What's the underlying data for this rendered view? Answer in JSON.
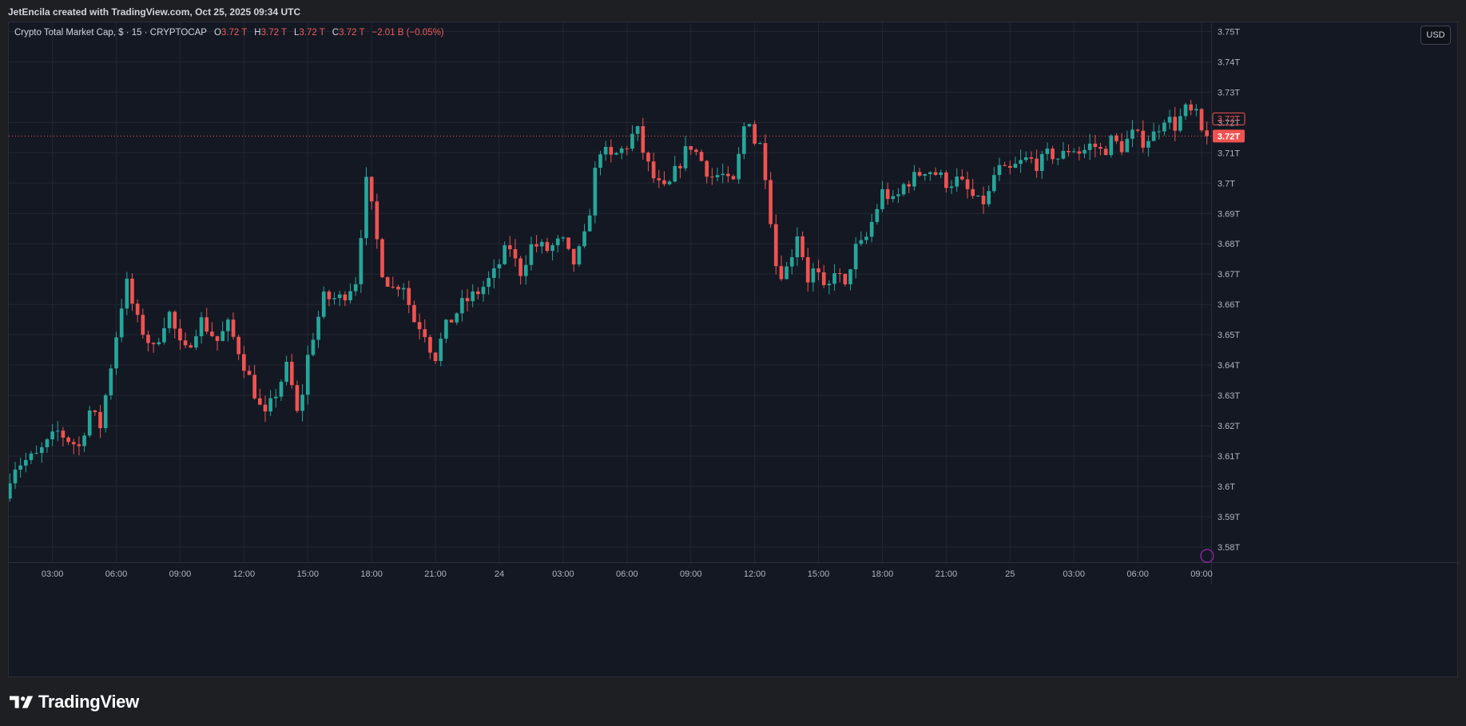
{
  "header": {
    "attribution": "JetEncila created with TradingView.com, Oct 25, 2025 09:34 UTC"
  },
  "legend": {
    "symbol": "Crypto Total Market Cap, $ · 15 · CRYPTOCAP",
    "open_key": "O",
    "open_value": "3.72 T",
    "high_key": "H",
    "high_value": "3.72 T",
    "low_key": "L",
    "low_value": "3.72 T",
    "close_key": "C",
    "close_value": "3.72 T",
    "change": "−2.01 B (−0.05%)"
  },
  "currency_label": "USD",
  "brand": {
    "logo_text": "TradingView"
  },
  "colors": {
    "up": "#26a69a",
    "down": "#ef5350",
    "background": "#141823",
    "grid": "#232733",
    "axis_text": "#b2b5be"
  },
  "chart_data": {
    "type": "candlestick",
    "title": "Crypto Total Market Cap, $ · 15 · CRYPTOCAP",
    "y_unit": "T",
    "ylim": [
      3.575,
      3.753
    ],
    "y_ticks": [
      3.58,
      3.59,
      3.6,
      3.61,
      3.62,
      3.63,
      3.64,
      3.65,
      3.66,
      3.67,
      3.68,
      3.69,
      3.7,
      3.71,
      3.72,
      3.73,
      3.74,
      3.75
    ],
    "y_tick_labels": [
      "3.58T",
      "3.59T",
      "3.6T",
      "3.61T",
      "3.62T",
      "3.63T",
      "3.64T",
      "3.65T",
      "3.66T",
      "3.67T",
      "3.68T",
      "3.69T",
      "3.7T",
      "3.71T",
      "3.72T",
      "3.73T",
      "3.74T",
      "3.75T"
    ],
    "x_ticks": [
      {
        "label": "03:00",
        "hour": 3
      },
      {
        "label": "06:00",
        "hour": 6
      },
      {
        "label": "09:00",
        "hour": 9
      },
      {
        "label": "12:00",
        "hour": 12
      },
      {
        "label": "15:00",
        "hour": 15
      },
      {
        "label": "18:00",
        "hour": 18
      },
      {
        "label": "21:00",
        "hour": 21
      },
      {
        "label": "24",
        "hour": 24
      },
      {
        "label": "03:00",
        "hour": 27
      },
      {
        "label": "06:00",
        "hour": 30
      },
      {
        "label": "09:00",
        "hour": 33
      },
      {
        "label": "12:00",
        "hour": 36
      },
      {
        "label": "15:00",
        "hour": 39
      },
      {
        "label": "18:00",
        "hour": 42
      },
      {
        "label": "21:00",
        "hour": 45
      },
      {
        "label": "25",
        "hour": 48
      },
      {
        "label": "03:00",
        "hour": 51
      },
      {
        "label": "06:00",
        "hour": 54
      },
      {
        "label": "09:00",
        "hour": 57
      }
    ],
    "x_range_hours": [
      0.95,
      57.45
    ],
    "interval_hours": 0.25,
    "last_price": 3.7155,
    "last_price_label": "3.72T",
    "waypoints": [
      [
        1.0,
        3.6
      ],
      [
        1.5,
        3.607
      ],
      [
        2.5,
        3.61
      ],
      [
        3.5,
        3.618
      ],
      [
        4.5,
        3.613
      ],
      [
        5.0,
        3.625
      ],
      [
        5.5,
        3.62
      ],
      [
        6.2,
        3.648
      ],
      [
        6.7,
        3.668
      ],
      [
        7.2,
        3.655
      ],
      [
        8.0,
        3.645
      ],
      [
        8.7,
        3.658
      ],
      [
        9.4,
        3.643
      ],
      [
        10.2,
        3.655
      ],
      [
        11.0,
        3.648
      ],
      [
        11.5,
        3.653
      ],
      [
        12.0,
        3.645
      ],
      [
        12.7,
        3.632
      ],
      [
        13.2,
        3.622
      ],
      [
        13.7,
        3.63
      ],
      [
        14.3,
        3.64
      ],
      [
        14.8,
        3.622
      ],
      [
        15.3,
        3.645
      ],
      [
        16.0,
        3.662
      ],
      [
        16.8,
        3.662
      ],
      [
        17.5,
        3.668
      ],
      [
        18.0,
        3.7
      ],
      [
        18.3,
        3.69
      ],
      [
        18.7,
        3.672
      ],
      [
        19.2,
        3.665
      ],
      [
        19.7,
        3.668
      ],
      [
        20.2,
        3.655
      ],
      [
        20.7,
        3.652
      ],
      [
        21.2,
        3.642
      ],
      [
        21.7,
        3.652
      ],
      [
        22.5,
        3.66
      ],
      [
        23.4,
        3.665
      ],
      [
        24.0,
        3.67
      ],
      [
        24.7,
        3.68
      ],
      [
        25.2,
        3.67
      ],
      [
        25.8,
        3.68
      ],
      [
        26.5,
        3.678
      ],
      [
        27.2,
        3.681
      ],
      [
        27.7,
        3.673
      ],
      [
        28.2,
        3.68
      ],
      [
        28.6,
        3.695
      ],
      [
        28.9,
        3.712
      ],
      [
        29.5,
        3.708
      ],
      [
        30.2,
        3.712
      ],
      [
        30.7,
        3.718
      ],
      [
        31.1,
        3.708
      ],
      [
        31.6,
        3.7
      ],
      [
        32.1,
        3.697
      ],
      [
        32.6,
        3.705
      ],
      [
        33.2,
        3.713
      ],
      [
        33.7,
        3.708
      ],
      [
        34.2,
        3.702
      ],
      [
        34.7,
        3.703
      ],
      [
        35.2,
        3.698
      ],
      [
        35.6,
        3.712
      ],
      [
        35.9,
        3.725
      ],
      [
        36.2,
        3.714
      ],
      [
        36.6,
        3.712
      ],
      [
        36.9,
        3.695
      ],
      [
        37.3,
        3.67
      ],
      [
        37.8,
        3.672
      ],
      [
        38.3,
        3.685
      ],
      [
        38.7,
        3.668
      ],
      [
        39.1,
        3.672
      ],
      [
        39.6,
        3.662
      ],
      [
        40.0,
        3.672
      ],
      [
        40.5,
        3.665
      ],
      [
        40.9,
        3.678
      ],
      [
        41.4,
        3.68
      ],
      [
        41.9,
        3.69
      ],
      [
        42.3,
        3.698
      ],
      [
        42.8,
        3.693
      ],
      [
        43.3,
        3.7
      ],
      [
        43.8,
        3.702
      ],
      [
        44.3,
        3.705
      ],
      [
        44.8,
        3.703
      ],
      [
        45.3,
        3.7
      ],
      [
        45.8,
        3.701
      ],
      [
        46.3,
        3.697
      ],
      [
        46.8,
        3.693
      ],
      [
        47.2,
        3.695
      ],
      [
        47.6,
        3.705
      ],
      [
        48.1,
        3.703
      ],
      [
        48.6,
        3.706
      ],
      [
        49.1,
        3.708
      ],
      [
        49.6,
        3.706
      ],
      [
        50.1,
        3.71
      ],
      [
        50.6,
        3.708
      ],
      [
        51.1,
        3.712
      ],
      [
        51.6,
        3.71
      ],
      [
        52.1,
        3.713
      ],
      [
        52.6,
        3.71
      ],
      [
        53.0,
        3.714
      ],
      [
        53.5,
        3.712
      ],
      [
        54.0,
        3.716
      ],
      [
        54.5,
        3.714
      ],
      [
        55.0,
        3.716
      ],
      [
        55.5,
        3.722
      ],
      [
        56.0,
        3.719
      ],
      [
        56.5,
        3.724
      ],
      [
        57.0,
        3.722
      ],
      [
        57.3,
        3.7155
      ]
    ]
  }
}
